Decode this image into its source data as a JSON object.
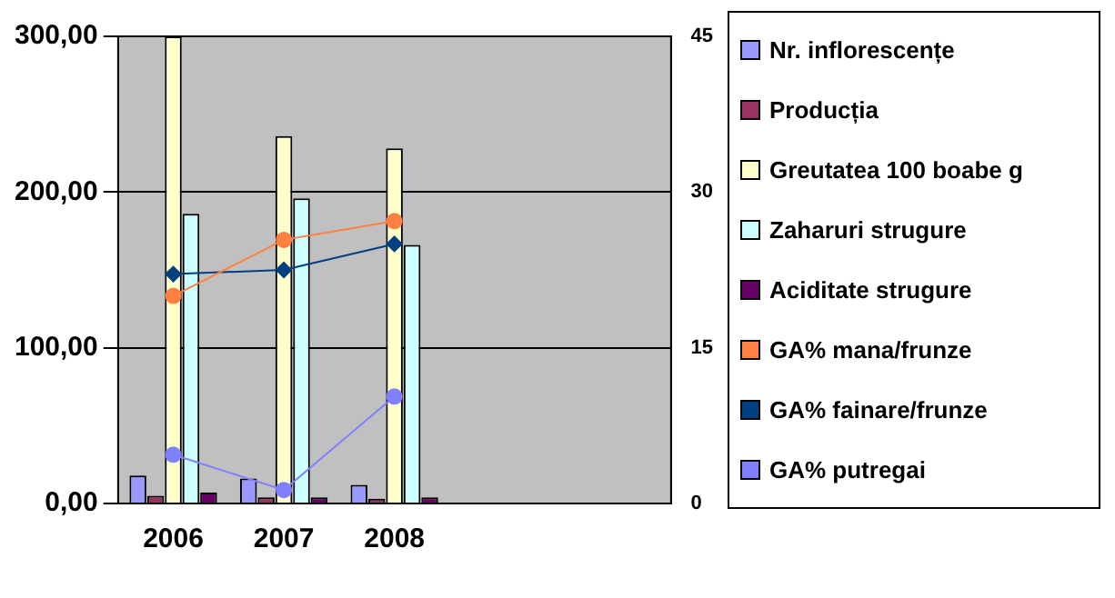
{
  "chart_data": {
    "type": "bar",
    "categories": [
      "2006",
      "2007",
      "2008",
      null,
      null
    ],
    "series": [
      {
        "name": "Nr. inflorescențe",
        "color": "#9999ff",
        "values": [
          18,
          16,
          12,
          null,
          null
        ]
      },
      {
        "name": "Producția",
        "color": "#993366",
        "values": [
          5,
          4,
          3,
          null,
          null
        ]
      },
      {
        "name": "Greutatea 100 boabe g",
        "color": "#ffffcc",
        "values": [
          300,
          236,
          228,
          null,
          null
        ]
      },
      {
        "name": "Zaharuri strugure",
        "color": "#ccffff",
        "values": [
          186,
          196,
          166,
          null,
          null
        ]
      },
      {
        "name": "Aciditate strugure",
        "color": "#660066",
        "values": [
          7,
          4,
          4,
          null,
          null
        ]
      },
      {
        "name": "GA% mana/frunze",
        "type": "line",
        "axis": "y2",
        "color": "#ff8040",
        "marker": "circle",
        "values": [
          20,
          25.4,
          27.2,
          null,
          null
        ]
      },
      {
        "name": "GA% fainare/frunze",
        "type": "line",
        "axis": "y2",
        "color": "#004080",
        "marker": "diamond",
        "values": [
          22.1,
          22.5,
          25,
          null,
          null
        ]
      },
      {
        "name": "GA% putregai",
        "type": "line",
        "axis": "y2",
        "color": "#8080ff",
        "marker": "circle",
        "values": [
          4.7,
          1.3,
          10.3,
          null,
          null
        ]
      }
    ],
    "ylim": [
      0,
      300
    ],
    "yticks": [
      {
        "value": 0,
        "label": "0,00"
      },
      {
        "value": 100,
        "label": "100,00"
      },
      {
        "value": 200,
        "label": "200,00"
      },
      {
        "value": 300,
        "label": "300,00"
      }
    ],
    "y2lim": [
      0,
      45
    ],
    "y2ticks": [
      0,
      15,
      30,
      45
    ],
    "grid": "y",
    "legend": "right"
  }
}
